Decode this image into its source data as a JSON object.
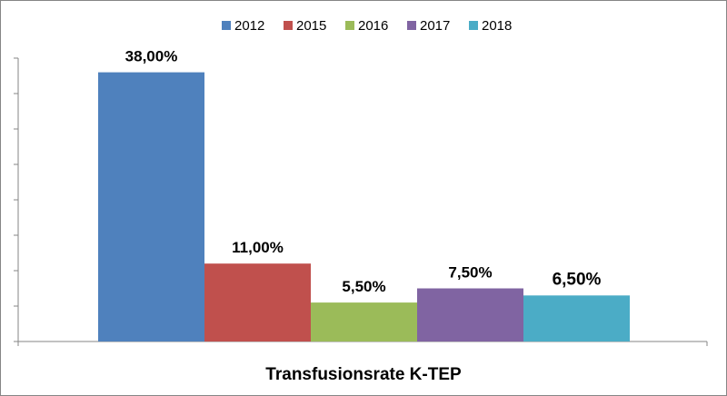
{
  "chart_data": {
    "type": "bar",
    "categories": [
      "Transfusionsrate K-TEP"
    ],
    "series": [
      {
        "name": "2012",
        "values": [
          38.0
        ],
        "label": "38,00%",
        "color": "#4F81BD"
      },
      {
        "name": "2015",
        "values": [
          11.0
        ],
        "label": "11,00%",
        "color": "#C0504D"
      },
      {
        "name": "2016",
        "values": [
          5.5
        ],
        "label": "5,50%",
        "color": "#9BBB59"
      },
      {
        "name": "2017",
        "values": [
          7.5
        ],
        "label": "7,50%",
        "color": "#8064A2"
      },
      {
        "name": "2018",
        "values": [
          6.5
        ],
        "label": "6,50%",
        "color": "#4BACC6"
      }
    ],
    "ylim": [
      0,
      40
    ],
    "legend_position": "top",
    "grid": false,
    "title": "",
    "xlabel": "",
    "ylabel": ""
  }
}
